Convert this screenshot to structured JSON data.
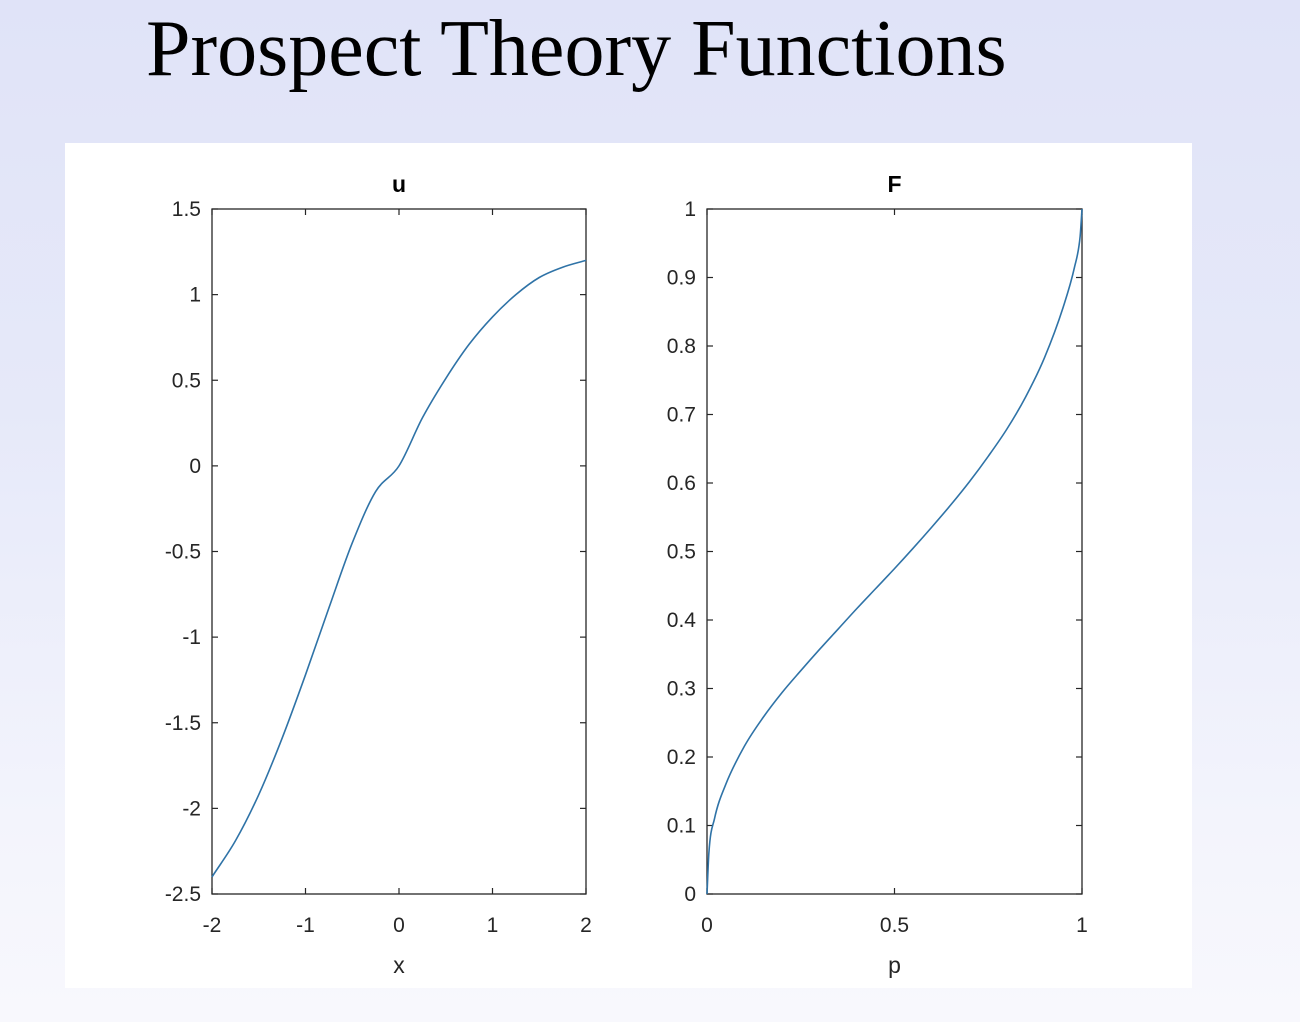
{
  "slide": {
    "title": "Prospect Theory Functions"
  },
  "colors": {
    "line": "#2f73a7",
    "axis": "#262626"
  },
  "chart_data": [
    {
      "type": "line",
      "title": "u",
      "xlabel": "x",
      "ylabel": "",
      "xlim": [
        -2,
        2
      ],
      "ylim": [
        -2.5,
        1.5
      ],
      "xticks": [
        -2,
        -1,
        0,
        1,
        2
      ],
      "xtick_labels": [
        "-2",
        "-1",
        "0",
        "1",
        "2"
      ],
      "yticks": [
        -2.5,
        -2,
        -1.5,
        -1,
        -0.5,
        0,
        0.5,
        1,
        1.5
      ],
      "ytick_labels": [
        "-2.5",
        "-2",
        "-1.5",
        "-1",
        "-0.5",
        "0",
        "0.5",
        "1",
        "1.5"
      ],
      "grid": false,
      "series": [
        {
          "x": [
            -2,
            -1.75,
            -1.5,
            -1.25,
            -1,
            -0.75,
            -0.5,
            -0.25,
            0,
            0.25,
            0.5,
            0.75,
            1,
            1.25,
            1.5,
            1.75,
            2
          ],
          "y": [
            -2.4,
            -2.19,
            -1.92,
            -1.59,
            -1.22,
            -0.83,
            -0.45,
            -0.15,
            0,
            0.28,
            0.51,
            0.71,
            0.87,
            1.0,
            1.1,
            1.16,
            1.2
          ]
        }
      ]
    },
    {
      "type": "line",
      "title": "F",
      "xlabel": "p",
      "ylabel": "",
      "xlim": [
        0,
        1
      ],
      "ylim": [
        0,
        1
      ],
      "xticks": [
        0,
        0.5,
        1
      ],
      "xtick_labels": [
        "0",
        "0.5",
        "1"
      ],
      "yticks": [
        0,
        0.1,
        0.2,
        0.3,
        0.4,
        0.5,
        0.6,
        0.7,
        0.8,
        0.9,
        1
      ],
      "ytick_labels": [
        "0",
        "0.1",
        "0.2",
        "0.3",
        "0.4",
        "0.5",
        "0.6",
        "0.7",
        "0.8",
        "0.9",
        "1"
      ],
      "grid": false,
      "series": [
        {
          "x": [
            0,
            0.005,
            0.02,
            0.05,
            0.1,
            0.15,
            0.2,
            0.25,
            0.3,
            0.35,
            0.4,
            0.45,
            0.5,
            0.55,
            0.6,
            0.65,
            0.7,
            0.75,
            0.8,
            0.85,
            0.9,
            0.95,
            0.98,
            0.995,
            1
          ],
          "y": [
            0,
            0.06,
            0.11,
            0.16,
            0.216,
            0.258,
            0.294,
            0.326,
            0.357,
            0.387,
            0.417,
            0.446,
            0.475,
            0.505,
            0.536,
            0.568,
            0.602,
            0.639,
            0.679,
            0.726,
            0.783,
            0.857,
            0.915,
            0.96,
            1
          ]
        }
      ]
    }
  ]
}
